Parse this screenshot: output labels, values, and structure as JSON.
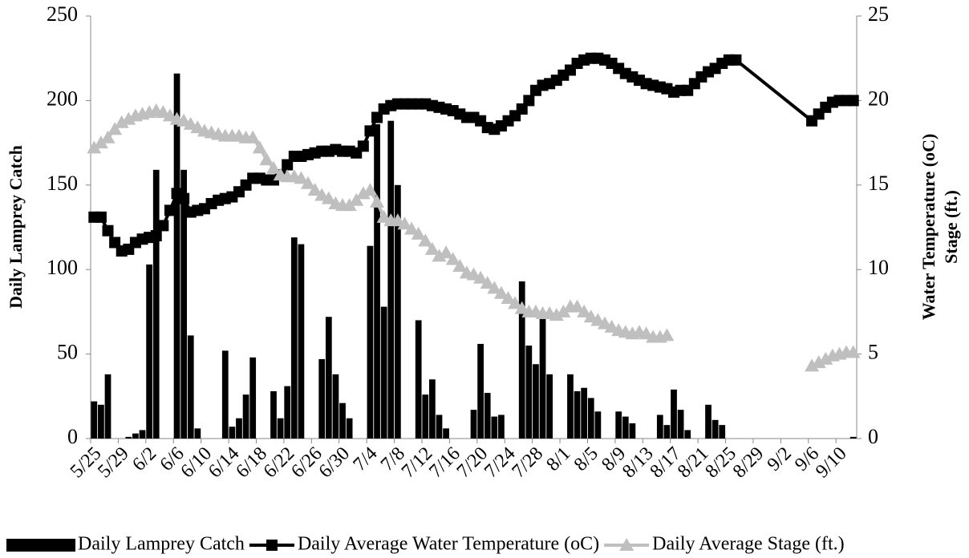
{
  "chart_data": {
    "type": "combo",
    "categories": [
      "5/25",
      null,
      null,
      null,
      "5/29",
      null,
      null,
      null,
      "6/2",
      null,
      null,
      null,
      "6/6",
      null,
      null,
      null,
      "6/10",
      null,
      null,
      null,
      "6/14",
      null,
      null,
      null,
      "6/18",
      null,
      null,
      null,
      "6/22",
      null,
      null,
      null,
      "6/26",
      null,
      null,
      null,
      "6/30",
      null,
      null,
      null,
      "7/4",
      null,
      null,
      null,
      "7/8",
      null,
      null,
      null,
      "7/12",
      null,
      null,
      null,
      "7/16",
      null,
      null,
      null,
      "7/20",
      null,
      null,
      null,
      "7/24",
      null,
      null,
      null,
      "7/28",
      null,
      null,
      null,
      "8/1",
      null,
      null,
      null,
      "8/5",
      null,
      null,
      null,
      "8/9",
      null,
      null,
      null,
      "8/13",
      null,
      null,
      null,
      "8/17",
      null,
      null,
      null,
      "8/21",
      null,
      null,
      null,
      "8/25",
      null,
      null,
      null,
      "8/29",
      null,
      null,
      null,
      "9/2",
      null,
      null,
      null,
      "9/6",
      null,
      null,
      null,
      "9/10",
      null,
      null
    ],
    "ylabel": "Daily Lamprey Catch",
    "y2label": [
      "Water Temperature (oC)",
      "Stage (ft.)"
    ],
    "ylim": [
      0,
      250
    ],
    "yticks": [
      0,
      50,
      100,
      150,
      200,
      250
    ],
    "y2lim": [
      0,
      25
    ],
    "y2ticks": [
      0,
      5,
      10,
      15,
      20,
      25
    ],
    "grid": false,
    "legend": "bottom",
    "series": [
      {
        "name": "Daily Lamprey Catch",
        "type": "bar",
        "color": "#000000",
        "values": [
          22,
          20,
          38,
          0,
          0,
          1,
          3,
          5,
          103,
          159,
          0,
          0,
          216,
          159,
          61,
          6,
          0,
          0,
          0,
          52,
          7,
          12,
          26,
          48,
          0,
          0,
          28,
          12,
          31,
          119,
          115,
          0,
          0,
          47,
          72,
          38,
          21,
          12,
          0,
          0,
          114,
          186,
          78,
          188,
          150,
          0,
          0,
          70,
          26,
          35,
          14,
          6,
          0,
          0,
          0,
          17,
          56,
          27,
          13,
          14,
          0,
          0,
          93,
          55,
          44,
          73,
          38,
          0,
          0,
          38,
          28,
          30,
          24,
          16,
          0,
          0,
          16,
          13,
          9,
          0,
          0,
          0,
          14,
          8,
          29,
          17,
          5,
          0,
          0,
          20,
          11,
          8,
          0,
          0,
          0,
          0,
          0,
          0,
          0,
          0,
          0,
          0,
          0,
          0,
          0,
          0,
          0,
          0,
          0,
          0,
          1
        ]
      },
      {
        "name": "Daily Average Water Temperature (oC)",
        "type": "line",
        "axis": "y2",
        "color": "#000000",
        "marker": "square",
        "span_gaps": true,
        "values": [
          13.1,
          13.1,
          12.3,
          11.6,
          11.1,
          11.2,
          11.6,
          11.8,
          11.9,
          12.0,
          12.6,
          13.5,
          14.5,
          14.2,
          13.4,
          13.5,
          13.6,
          13.9,
          14.1,
          14.2,
          14.3,
          14.6,
          15.0,
          15.4,
          15.4,
          15.3,
          15.3,
          15.6,
          16.2,
          16.7,
          16.7,
          16.8,
          16.9,
          17.0,
          17.0,
          17.1,
          17.0,
          17.0,
          16.9,
          17.3,
          18.2,
          19.0,
          19.5,
          19.7,
          19.8,
          19.8,
          19.8,
          19.8,
          19.8,
          19.7,
          19.6,
          19.5,
          19.4,
          19.2,
          19.0,
          19.0,
          18.8,
          18.4,
          18.3,
          18.5,
          18.8,
          19.1,
          19.5,
          20.0,
          20.6,
          20.9,
          21.0,
          21.2,
          21.5,
          21.8,
          22.2,
          22.4,
          22.5,
          22.5,
          22.4,
          22.2,
          21.9,
          21.6,
          21.4,
          21.2,
          21.0,
          20.9,
          20.8,
          20.7,
          20.5,
          20.6,
          20.6,
          21.0,
          21.4,
          21.7,
          21.9,
          22.2,
          22.4,
          22.4,
          null,
          null,
          null,
          null,
          null,
          null,
          null,
          null,
          null,
          null,
          18.8,
          19.2,
          19.6,
          19.9,
          20.0,
          20.0,
          20.0
        ]
      },
      {
        "name": "Daily Average Stage (ft.)",
        "type": "line",
        "axis": "y2",
        "color": "#bfbfbf",
        "marker": "triangle",
        "span_gaps": false,
        "values": [
          17.2,
          17.5,
          17.8,
          18.3,
          18.7,
          18.9,
          19.1,
          19.2,
          19.3,
          19.4,
          19.3,
          19.1,
          18.9,
          18.8,
          18.6,
          18.4,
          18.2,
          18.1,
          18.0,
          17.9,
          17.9,
          17.9,
          17.8,
          17.8,
          17.2,
          16.5,
          16.0,
          15.6,
          15.5,
          15.5,
          15.4,
          15.1,
          14.7,
          14.4,
          14.2,
          13.9,
          13.8,
          13.8,
          14.1,
          14.5,
          14.7,
          14.0,
          13.1,
          12.9,
          12.9,
          12.7,
          12.4,
          12.1,
          11.7,
          11.2,
          10.8,
          11.0,
          10.6,
          10.2,
          9.8,
          9.7,
          9.5,
          9.2,
          8.9,
          8.6,
          8.3,
          8.0,
          7.7,
          7.5,
          7.5,
          7.4,
          7.4,
          7.3,
          7.5,
          7.8,
          7.8,
          7.5,
          7.2,
          7.0,
          6.8,
          6.6,
          6.4,
          6.3,
          6.2,
          6.3,
          6.2,
          6.0,
          6.0,
          6.1,
          null,
          null,
          null,
          null,
          null,
          null,
          null,
          null,
          null,
          null,
          null,
          null,
          null,
          null,
          null,
          null,
          null,
          null,
          null,
          null,
          4.3,
          4.5,
          4.7,
          4.9,
          5.0,
          5.1,
          5.1
        ]
      }
    ]
  }
}
